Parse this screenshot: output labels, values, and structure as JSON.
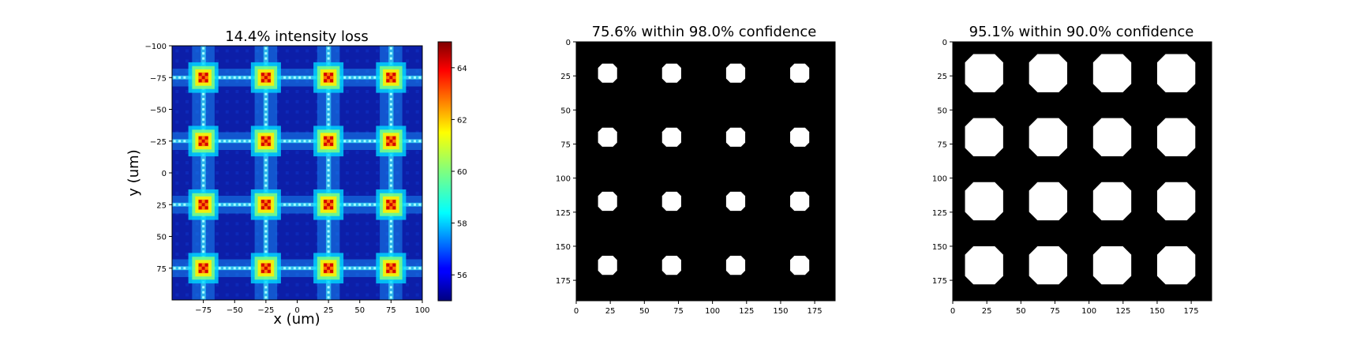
{
  "figure": {
    "background": "#ffffff"
  },
  "chart_data": [
    {
      "type": "heatmap",
      "title": "14.4% intensity loss",
      "xlabel": "x (um)",
      "ylabel": "y (um)",
      "xlim": [
        -100,
        100
      ],
      "ylim": [
        -100,
        100
      ],
      "y_inverted": true,
      "xticks": [
        -75,
        -50,
        -25,
        0,
        25,
        50,
        75,
        100
      ],
      "xtick_labels": [
        "−75",
        "−50",
        "−25",
        "0",
        "25",
        "50",
        "75",
        "100"
      ],
      "yticks": [
        -100,
        -75,
        -50,
        -25,
        0,
        25,
        50,
        75
      ],
      "ytick_labels": [
        "−100",
        "−75",
        "−50",
        "−25",
        "0",
        "25",
        "50",
        "75"
      ],
      "colormap": "jet",
      "colorbar": {
        "range": [
          55,
          65
        ],
        "ticks": [
          56,
          58,
          60,
          62,
          64
        ],
        "tick_labels": [
          "56",
          "58",
          "60",
          "62",
          "64"
        ]
      },
      "spot_grid": {
        "x_centers": [
          -75,
          -25,
          25,
          75
        ],
        "y_centers": [
          -75,
          -25,
          25,
          75
        ]
      }
    },
    {
      "type": "heatmap",
      "title": "75.6% within 98.0% confidence",
      "colormap": "binary (black/white)",
      "xlim": [
        0,
        190
      ],
      "ylim": [
        0,
        190
      ],
      "y_inverted": true,
      "xticks": [
        0,
        25,
        50,
        75,
        100,
        125,
        150,
        175
      ],
      "xtick_labels": [
        "0",
        "25",
        "50",
        "75",
        "100",
        "125",
        "150",
        "175"
      ],
      "yticks": [
        0,
        25,
        50,
        75,
        100,
        125,
        150,
        175
      ],
      "ytick_labels": [
        "0",
        "25",
        "50",
        "75",
        "100",
        "125",
        "150",
        "175"
      ],
      "spot_centers_x": [
        23,
        70,
        117,
        164
      ],
      "spot_centers_y": [
        23,
        70,
        117,
        164
      ],
      "spot_diameter": 14
    },
    {
      "type": "heatmap",
      "title": "95.1% within 90.0% confidence",
      "colormap": "binary (black/white)",
      "xlim": [
        0,
        190
      ],
      "ylim": [
        0,
        190
      ],
      "y_inverted": true,
      "xticks": [
        0,
        25,
        50,
        75,
        100,
        125,
        150,
        175
      ],
      "xtick_labels": [
        "0",
        "25",
        "50",
        "75",
        "100",
        "125",
        "150",
        "175"
      ],
      "yticks": [
        0,
        25,
        50,
        75,
        100,
        125,
        150,
        175
      ],
      "ytick_labels": [
        "0",
        "25",
        "50",
        "75",
        "100",
        "125",
        "150",
        "175"
      ],
      "spot_centers_x": [
        23,
        70,
        117,
        164
      ],
      "spot_centers_y": [
        23,
        70,
        117,
        164
      ],
      "spot_diameter": 28
    }
  ]
}
